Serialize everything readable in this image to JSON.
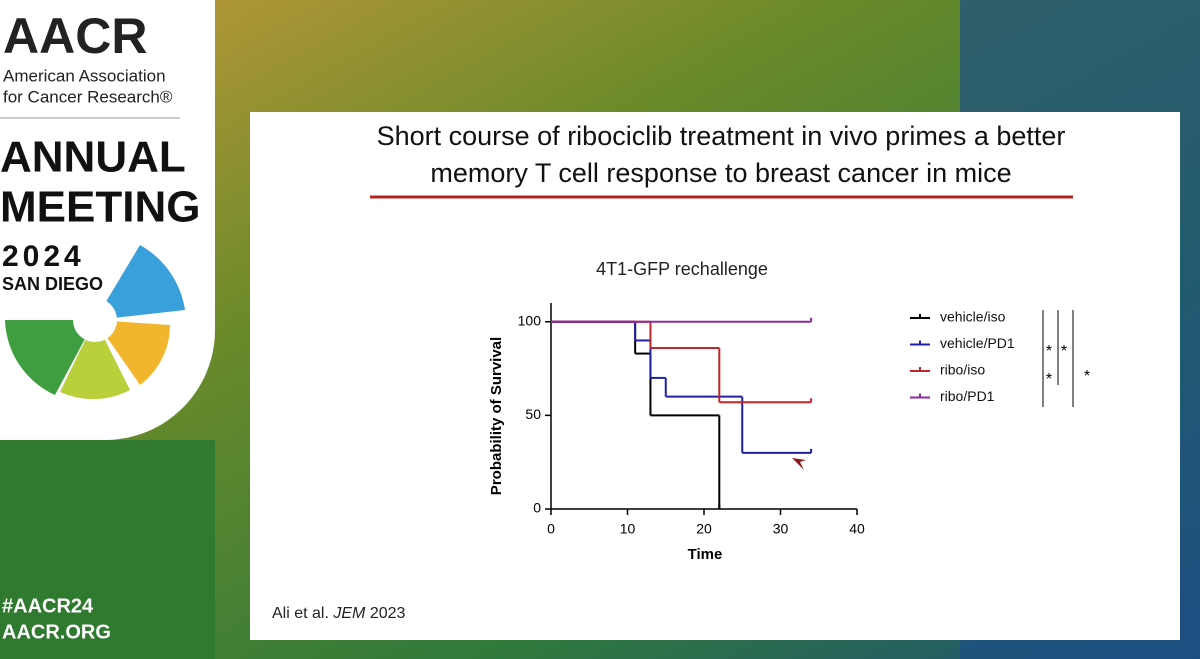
{
  "branding": {
    "logo": "AACR",
    "org_line1": "American Association",
    "org_line2": "for Cancer Research®",
    "meeting_line1": "ANNUAL",
    "meeting_line2": "MEETING",
    "year": "2024",
    "city": "SAN DIEGO",
    "hashtag": "#AACR24",
    "website": "AACR.ORG"
  },
  "slide": {
    "title_line1": "Short course of ribociclib treatment in vivo primes a better",
    "title_line2": "memory T cell response to breast cancer in mice",
    "citation": {
      "authors": "Ali et al.",
      "journal": "JEM",
      "year": "2023"
    }
  },
  "chart_data": {
    "type": "step",
    "title": "4T1-GFP rechallenge",
    "x_label": "Time",
    "y_label": "Probability of Survival",
    "xlim": [
      0,
      40
    ],
    "xticks": [
      0,
      10,
      20,
      30,
      40
    ],
    "ylim": [
      0,
      110
    ],
    "yticks": [
      0,
      50,
      100
    ],
    "series": [
      {
        "name": "vehicle/iso",
        "color": "#000000",
        "x": [
          0,
          11,
          13,
          22
        ],
        "values": [
          100,
          83,
          50,
          0
        ]
      },
      {
        "name": "vehicle/PD1",
        "color": "#1f1fa8",
        "x": [
          0,
          11,
          13,
          15,
          25,
          34
        ],
        "values": [
          100,
          90,
          70,
          60,
          30,
          30
        ]
      },
      {
        "name": "ribo/iso",
        "color": "#c0262c",
        "x": [
          0,
          13,
          22,
          34
        ],
        "values": [
          100,
          86,
          57,
          57
        ]
      },
      {
        "name": "ribo/PD1",
        "color": "#8b2a9b",
        "x": [
          0,
          34
        ],
        "values": [
          100,
          100
        ]
      }
    ],
    "annotations": [
      "*",
      "*",
      "*",
      "*"
    ]
  }
}
